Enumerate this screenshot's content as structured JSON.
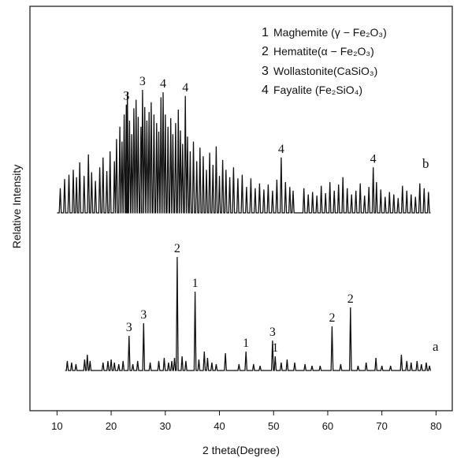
{
  "chart_data": {
    "type": "line",
    "title": "",
    "xlabel": "2 theta(Degree)",
    "ylabel": "Relative Intensity",
    "xlim": [
      5,
      83
    ],
    "xticks": [
      10,
      20,
      30,
      40,
      50,
      60,
      70,
      80
    ],
    "yticks_labeled": false,
    "grid": false,
    "legend": {
      "placement": "top-right",
      "entries": [
        {
          "num": "1",
          "text": "Maghemite (γ − Fe₂O₃)"
        },
        {
          "num": "2",
          "text": "Hematite(α − Fe₂O₃)"
        },
        {
          "num": "3",
          "text": "Wollastonite(CaSiO₃)"
        },
        {
          "num": "4",
          "text": "Fayalite (Fe₂SiO₄)"
        }
      ]
    },
    "series": [
      {
        "name": "b",
        "x_range": [
          10,
          79
        ],
        "baseline": 0,
        "peaks": [
          [
            10.6,
            40
          ],
          [
            11.4,
            55
          ],
          [
            12.2,
            62
          ],
          [
            13.0,
            70
          ],
          [
            13.6,
            58
          ],
          [
            14.2,
            82
          ],
          [
            15.0,
            60
          ],
          [
            15.8,
            95
          ],
          [
            16.4,
            66
          ],
          [
            17.1,
            52
          ],
          [
            17.9,
            74
          ],
          [
            18.5,
            90
          ],
          [
            19.2,
            68
          ],
          [
            19.8,
            100
          ],
          [
            20.6,
            84
          ],
          [
            21.0,
            120
          ],
          [
            21.6,
            140
          ],
          [
            22.0,
            116
          ],
          [
            22.4,
            160
          ],
          [
            22.8,
            176
          ],
          [
            23.0,
            196
          ],
          [
            23.4,
            150
          ],
          [
            23.8,
            128
          ],
          [
            24.2,
            170
          ],
          [
            24.6,
            184
          ],
          [
            25.0,
            156
          ],
          [
            25.5,
            140
          ],
          [
            25.8,
            200
          ],
          [
            26.2,
            172
          ],
          [
            26.6,
            150
          ],
          [
            27.0,
            164
          ],
          [
            27.4,
            180
          ],
          [
            27.9,
            160
          ],
          [
            28.4,
            146
          ],
          [
            28.8,
            132
          ],
          [
            29.2,
            188
          ],
          [
            29.6,
            196
          ],
          [
            30.0,
            160
          ],
          [
            30.5,
            140
          ],
          [
            31.0,
            154
          ],
          [
            31.4,
            128
          ],
          [
            31.9,
            146
          ],
          [
            32.4,
            168
          ],
          [
            32.8,
            134
          ],
          [
            33.2,
            112
          ],
          [
            33.7,
            190
          ],
          [
            34.1,
            124
          ],
          [
            34.6,
            100
          ],
          [
            35.2,
            116
          ],
          [
            35.8,
            84
          ],
          [
            36.4,
            106
          ],
          [
            37.0,
            92
          ],
          [
            37.6,
            70
          ],
          [
            38.2,
            98
          ],
          [
            38.8,
            78
          ],
          [
            39.4,
            108
          ],
          [
            40.0,
            60
          ],
          [
            40.6,
            86
          ],
          [
            41.2,
            70
          ],
          [
            41.9,
            58
          ],
          [
            42.6,
            74
          ],
          [
            43.4,
            56
          ],
          [
            44.2,
            62
          ],
          [
            45.0,
            42
          ],
          [
            45.8,
            56
          ],
          [
            46.6,
            40
          ],
          [
            47.4,
            48
          ],
          [
            48.2,
            38
          ],
          [
            49.0,
            46
          ],
          [
            49.8,
            36
          ],
          [
            50.6,
            54
          ],
          [
            51.4,
            90
          ],
          [
            52.2,
            50
          ],
          [
            53.0,
            42
          ],
          [
            53.6,
            36
          ],
          [
            55.6,
            40
          ],
          [
            56.4,
            30
          ],
          [
            57.2,
            34
          ],
          [
            58.0,
            28
          ],
          [
            58.8,
            44
          ],
          [
            59.6,
            32
          ],
          [
            60.4,
            50
          ],
          [
            61.2,
            36
          ],
          [
            62.0,
            46
          ],
          [
            62.8,
            58
          ],
          [
            63.6,
            40
          ],
          [
            64.4,
            30
          ],
          [
            65.2,
            36
          ],
          [
            66.0,
            48
          ],
          [
            66.8,
            28
          ],
          [
            67.6,
            42
          ],
          [
            68.4,
            74
          ],
          [
            69.0,
            50
          ],
          [
            69.8,
            38
          ],
          [
            70.6,
            26
          ],
          [
            71.4,
            34
          ],
          [
            72.2,
            30
          ],
          [
            73.0,
            24
          ],
          [
            73.8,
            44
          ],
          [
            74.6,
            36
          ],
          [
            75.4,
            30
          ],
          [
            76.2,
            26
          ],
          [
            77.0,
            48
          ],
          [
            77.8,
            40
          ],
          [
            78.6,
            34
          ]
        ],
        "annotations": [
          {
            "x": 22.8,
            "label": "3"
          },
          {
            "x": 25.8,
            "label": "3"
          },
          {
            "x": 29.6,
            "label": "4"
          },
          {
            "x": 33.7,
            "label": "4"
          },
          {
            "x": 51.4,
            "label": "4"
          },
          {
            "x": 68.4,
            "label": "4"
          }
        ]
      },
      {
        "name": "a",
        "x_range": [
          11.5,
          79
        ],
        "baseline": 0,
        "peaks": [
          [
            11.9,
            12
          ],
          [
            12.7,
            10
          ],
          [
            13.5,
            8
          ],
          [
            15.1,
            14
          ],
          [
            15.6,
            20
          ],
          [
            16.1,
            12
          ],
          [
            18.5,
            10
          ],
          [
            19.4,
            12
          ],
          [
            20.0,
            14
          ],
          [
            20.6,
            10
          ],
          [
            21.4,
            8
          ],
          [
            22.2,
            12
          ],
          [
            23.3,
            44
          ],
          [
            24.0,
            8
          ],
          [
            24.9,
            12
          ],
          [
            26.0,
            60
          ],
          [
            27.2,
            10
          ],
          [
            28.8,
            12
          ],
          [
            29.8,
            16
          ],
          [
            30.6,
            10
          ],
          [
            31.2,
            12
          ],
          [
            31.7,
            16
          ],
          [
            32.2,
            144
          ],
          [
            33.1,
            18
          ],
          [
            33.8,
            12
          ],
          [
            35.5,
            100
          ],
          [
            36.2,
            14
          ],
          [
            37.2,
            24
          ],
          [
            37.8,
            16
          ],
          [
            38.6,
            10
          ],
          [
            39.4,
            8
          ],
          [
            41.1,
            22
          ],
          [
            43.6,
            8
          ],
          [
            44.9,
            24
          ],
          [
            46.3,
            8
          ],
          [
            47.5,
            6
          ],
          [
            49.8,
            38
          ],
          [
            50.3,
            18
          ],
          [
            51.4,
            10
          ],
          [
            52.5,
            14
          ],
          [
            53.9,
            10
          ],
          [
            55.8,
            8
          ],
          [
            57.1,
            6
          ],
          [
            58.6,
            6
          ],
          [
            60.8,
            56
          ],
          [
            62.4,
            8
          ],
          [
            64.2,
            80
          ],
          [
            65.6,
            6
          ],
          [
            67.1,
            10
          ],
          [
            68.9,
            16
          ],
          [
            70.0,
            6
          ],
          [
            71.6,
            6
          ],
          [
            73.6,
            20
          ],
          [
            74.6,
            12
          ],
          [
            75.4,
            10
          ],
          [
            76.5,
            12
          ],
          [
            77.3,
            8
          ],
          [
            78.2,
            10
          ],
          [
            78.8,
            6
          ]
        ],
        "annotations": [
          {
            "x": 23.3,
            "label": "3"
          },
          {
            "x": 26.0,
            "label": "3"
          },
          {
            "x": 32.2,
            "label": "2"
          },
          {
            "x": 35.5,
            "label": "1"
          },
          {
            "x": 44.9,
            "label": "1"
          },
          {
            "x": 49.8,
            "label": "3"
          },
          {
            "x": 50.3,
            "label": "1"
          },
          {
            "x": 60.8,
            "label": "2"
          },
          {
            "x": 64.2,
            "label": "2"
          }
        ]
      }
    ]
  }
}
